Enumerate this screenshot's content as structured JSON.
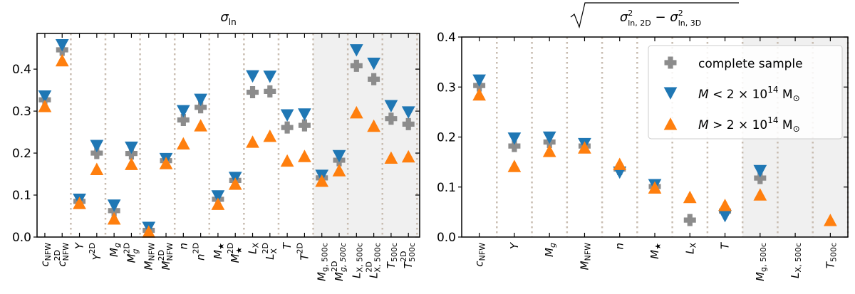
{
  "chart_data": [
    {
      "type": "scatter",
      "title": {
        "base": "σ",
        "sub": "ln"
      },
      "ylim": [
        0,
        0.485
      ],
      "yticks": [
        "0.0",
        "0.1",
        "0.2",
        "0.3",
        "0.4"
      ],
      "shaded_from_category": 17,
      "separators": "pairs",
      "categories": [
        {
          "base": "c",
          "sub": "NFW"
        },
        {
          "base": "c",
          "sup": "2D",
          "sub": "NFW"
        },
        {
          "base": "Y"
        },
        {
          "base": "Y",
          "sup": "2D"
        },
        {
          "base": "M",
          "sub": "g"
        },
        {
          "base": "M",
          "sup": "2D",
          "sub": "g"
        },
        {
          "base": "M",
          "sub": "NFW"
        },
        {
          "base": "M",
          "sup": "2D",
          "sub": "NFW"
        },
        {
          "base": "n"
        },
        {
          "base": "n",
          "sup": "2D"
        },
        {
          "base": "M",
          "sub": "★"
        },
        {
          "base": "M",
          "sup": "2D",
          "sub": "★"
        },
        {
          "base": "L",
          "sub": "X"
        },
        {
          "base": "L",
          "sup": "2D",
          "sub": "X"
        },
        {
          "base": "T"
        },
        {
          "base": "T",
          "sup": "2D"
        },
        {
          "base": "M",
          "sub": "g, 500c"
        },
        {
          "base": "M",
          "sup": "2D",
          "sub": "g, 500c"
        },
        {
          "base": "L",
          "sub": "X, 500c"
        },
        {
          "base": "L",
          "sup": "2D",
          "sub": "X, 500c"
        },
        {
          "base": "T",
          "sub": "500c"
        },
        {
          "base": "T",
          "sup": "2D",
          "sub": "500c"
        }
      ],
      "series": [
        {
          "name": "complete sample",
          "values": [
            0.327,
            0.446,
            0.085,
            0.2,
            0.063,
            0.199,
            0.016,
            0.182,
            0.279,
            0.309,
            0.09,
            0.135,
            0.345,
            0.347,
            0.261,
            0.266,
            0.141,
            0.183,
            0.408,
            0.376,
            0.282,
            0.269
          ]
        },
        {
          "name": "M < 2 × 10^14 M⊙",
          "values": [
            0.335,
            0.457,
            0.089,
            0.217,
            0.075,
            0.213,
            0.022,
            0.186,
            0.3,
            0.327,
            0.097,
            0.141,
            0.383,
            0.382,
            0.29,
            0.292,
            0.146,
            0.193,
            0.445,
            0.413,
            0.312,
            0.297
          ]
        },
        {
          "name": "M > 2 × 10^14 M⊙",
          "values": [
            0.312,
            0.421,
            0.081,
            0.162,
            0.044,
            0.174,
            0.013,
            0.176,
            0.223,
            0.266,
            0.079,
            0.127,
            0.227,
            0.241,
            0.182,
            0.193,
            0.134,
            0.159,
            0.297,
            0.265,
            0.189,
            0.192
          ]
        }
      ]
    },
    {
      "type": "scatter",
      "title": {
        "base": "σ",
        "sub1": "ln, 2D",
        "minus": "−",
        "sub2": "ln, 3D",
        "sup": "2"
      },
      "ylim": [
        0,
        0.4
      ],
      "yticks": [
        "0.0",
        "0.1",
        "0.2",
        "0.3",
        "0.4"
      ],
      "shaded_from_category": 9,
      "separators": "each",
      "categories": [
        {
          "base": "c",
          "sub": "NFW"
        },
        {
          "base": "Y"
        },
        {
          "base": "M",
          "sub": "g"
        },
        {
          "base": "M",
          "sub": "NFW"
        },
        {
          "base": "n"
        },
        {
          "base": "M",
          "sub": "★"
        },
        {
          "base": "L",
          "sub": "X"
        },
        {
          "base": "T"
        },
        {
          "base": "M",
          "sub": "g, 500c"
        },
        {
          "base": "L",
          "sub": "X, 500c"
        },
        {
          "base": "T",
          "sub": "500c"
        }
      ],
      "series": [
        {
          "name": "complete sample",
          "values": [
            0.303,
            0.182,
            0.19,
            0.182,
            0.136,
            0.101,
            0.034,
            0.052,
            0.118,
            null,
            null
          ]
        },
        {
          "name": "M < 2 × 10^14 M⊙",
          "values": [
            0.313,
            0.197,
            0.199,
            0.186,
            0.129,
            0.104,
            null,
            0.042,
            0.132,
            null,
            null
          ]
        },
        {
          "name": "M > 2 × 10^14 M⊙",
          "values": [
            0.285,
            0.142,
            0.172,
            0.179,
            0.146,
            0.099,
            0.08,
            0.064,
            0.085,
            null,
            0.034
          ]
        }
      ],
      "legend": {
        "placement": "top-right",
        "entries": [
          {
            "text": "complete sample"
          },
          {
            "M": "M",
            "rel": " < 2 × 10",
            "exp": "14",
            "unit": " M",
            "sun": "⊙"
          },
          {
            "M": "M",
            "rel": " > 2 × 10",
            "exp": "14",
            "unit": " M",
            "sun": "⊙"
          }
        ]
      }
    }
  ],
  "colors": {
    "complete": "#8c8c8c",
    "low": "#1f77b4",
    "high": "#ff7f0e",
    "shade": "#f0f0f0",
    "sep": "#c8bcb0"
  }
}
